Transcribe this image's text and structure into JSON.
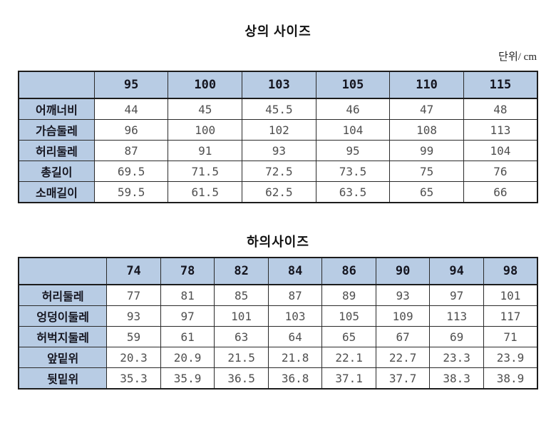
{
  "unit_label": "단위/ cm",
  "colors": {
    "header_fill": "#b8cce4",
    "grid_border": "#1c1c1c",
    "header_text": "#15151f",
    "value_text": "#4f4f4f",
    "background": "#ffffff"
  },
  "tables": [
    {
      "title": "상의 사이즈",
      "columns": [
        "95",
        "100",
        "103",
        "105",
        "110",
        "115"
      ],
      "rows": [
        {
          "label": "어깨너비",
          "values": [
            "44",
            "45",
            "45.5",
            "46",
            "47",
            "48"
          ]
        },
        {
          "label": "가슴둘레",
          "values": [
            "96",
            "100",
            "102",
            "104",
            "108",
            "113"
          ]
        },
        {
          "label": "허리둘레",
          "values": [
            "87",
            "91",
            "93",
            "95",
            "99",
            "104"
          ]
        },
        {
          "label": "총길이",
          "values": [
            "69.5",
            "71.5",
            "72.5",
            "73.5",
            "75",
            "76"
          ]
        },
        {
          "label": "소매길이",
          "values": [
            "59.5",
            "61.5",
            "62.5",
            "63.5",
            "65",
            "66"
          ]
        }
      ]
    },
    {
      "title": "하의사이즈",
      "columns": [
        "74",
        "78",
        "82",
        "84",
        "86",
        "90",
        "94",
        "98"
      ],
      "rows": [
        {
          "label": "허리둘레",
          "values": [
            "77",
            "81",
            "85",
            "87",
            "89",
            "93",
            "97",
            "101"
          ]
        },
        {
          "label": "엉덩이둘레",
          "values": [
            "93",
            "97",
            "101",
            "103",
            "105",
            "109",
            "113",
            "117"
          ]
        },
        {
          "label": "허벅지둘레",
          "values": [
            "59",
            "61",
            "63",
            "64",
            "65",
            "67",
            "69",
            "71"
          ]
        },
        {
          "label": "앞밑위",
          "values": [
            "20.3",
            "20.9",
            "21.5",
            "21.8",
            "22.1",
            "22.7",
            "23.3",
            "23.9"
          ]
        },
        {
          "label": "뒷밑위",
          "values": [
            "35.3",
            "35.9",
            "36.5",
            "36.8",
            "37.1",
            "37.7",
            "38.3",
            "38.9"
          ]
        }
      ]
    }
  ]
}
